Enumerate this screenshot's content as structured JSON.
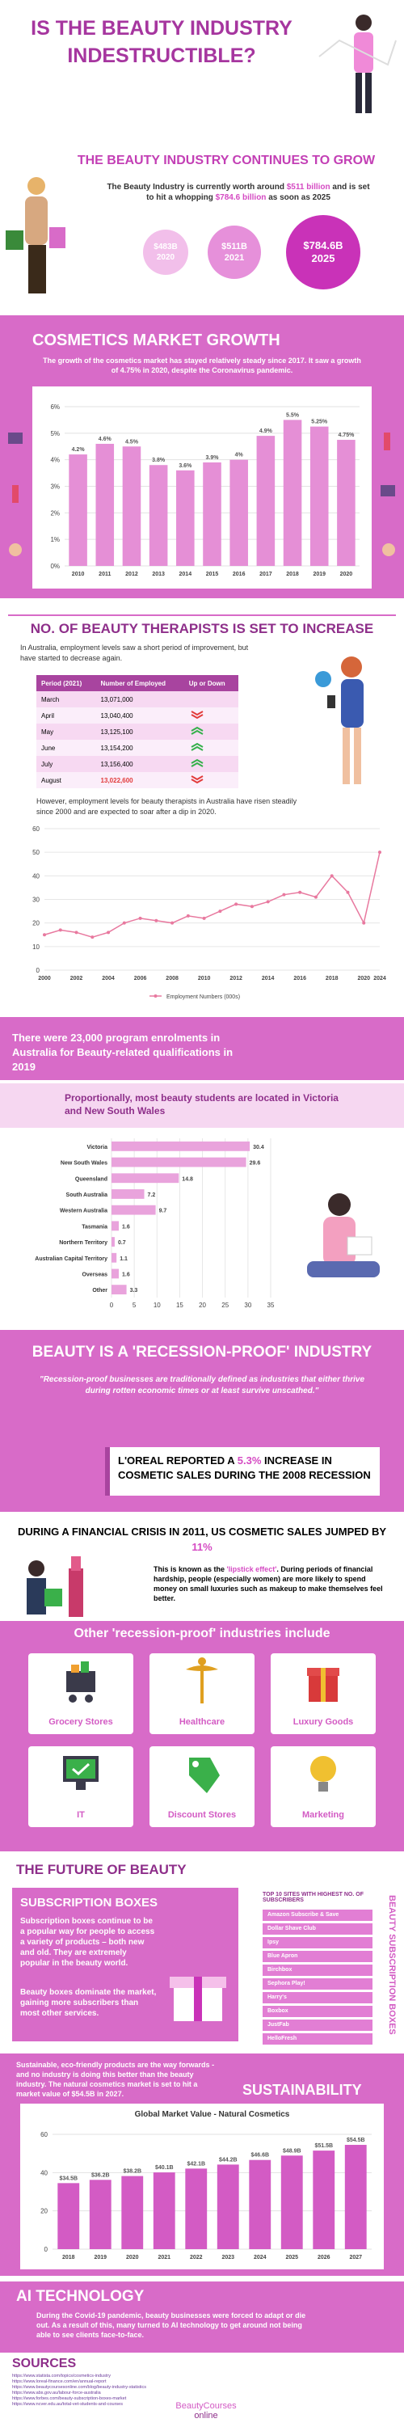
{
  "header": {
    "title": "IS THE BEAUTY INDUSTRY INDESTRUCTIBLE?"
  },
  "growth": {
    "title": "THE BEAUTY INDUSTRY CONTINUES TO GROW",
    "text": [
      "The Beauty Industry is currently worth around ",
      "$511 billion",
      " and is set to hit a whopping ",
      "$784.6 billion",
      " as soon as 2025"
    ],
    "circles": [
      {
        "amount": "$483B",
        "year": "2020"
      },
      {
        "amount": "$511B",
        "year": "2021"
      },
      {
        "amount": "$784.6B",
        "year": "2025"
      }
    ]
  },
  "cosmetics": {
    "title": "COSMETICS MARKET GROWTH",
    "text": "The growth of the cosmetics market has stayed relatively steady since 2017. It saw a growth of 4.75% in 2020, despite the Coronavirus pandemic."
  },
  "therapists": {
    "title": "NO. OF BEAUTY THERAPISTS IS SET TO INCREASE",
    "text": "In Australia, employment levels saw a short period of improvement, but have started to decrease again.",
    "table": {
      "columns": [
        "Period (2021)",
        "Number of Employed",
        "Up or Down"
      ],
      "rows": [
        [
          "March",
          "13,071,000"
        ],
        [
          "April",
          "13,040,400"
        ],
        [
          "May",
          "13,125,100"
        ],
        [
          "June",
          "13,154,200"
        ],
        [
          "July",
          "13,156,400"
        ],
        [
          "August",
          "13,022,600"
        ]
      ]
    },
    "text2": "However, employment levels for beauty therapists in Australia have risen steadily since 2000 and are expected to soar after a dip in 2020."
  },
  "enrolments": "There were 23,000 program enrolments in Australia for Beauty-related qualifications in 2019",
  "proportion": "Proportionally, most beauty students are located in Victoria and New South Wales",
  "recession": {
    "title": "BEAUTY IS A 'RECESSION-PROOF' INDUSTRY",
    "quote": "\"Recession-proof businesses are traditionally defined as industries that either thrive during rotten economic times or at least survive unscathed.\"",
    "loreal": [
      "L'OREAL REPORTED A ",
      "5.3%",
      " INCREASE IN COSMETIC SALES DURING THE 2008 RECESSION"
    ],
    "crisis": [
      "DURING A FINANCIAL CRISIS IN 2011, US COSMETIC SALES JUMPED BY ",
      "11%"
    ],
    "lipstick": [
      "This is known as the ",
      "'lipstick effect'",
      ". During periods of financial hardship, people (especially women) are more likely to spend money on small luxuries such as makeup to make themselves feel better."
    ]
  },
  "industries": {
    "title": "Other 'recession-proof' industries include",
    "items": [
      "Grocery Stores",
      "Healthcare",
      "Luxury Goods",
      "IT",
      "Discount Stores",
      "Marketing"
    ]
  },
  "future": {
    "title": "THE FUTURE OF BEAUTY",
    "subscription": {
      "title": "SUBSCRIPTION BOXES",
      "text1": "Subscription boxes continue to be a popular way for people to access a variety of products – both new and old. They are extremely popular in the beauty world.",
      "text2": "Beauty boxes dominate the market, gaining more subscribers than most other services."
    },
    "sites": {
      "title": "TOP 10 SITES WITH HIGHEST NO. OF SUBSCRIBERS",
      "side": "BEAUTY SUBSCRIPTION BOXES",
      "items": [
        "Amazon Subscribe & Save",
        "Dollar Shave Club",
        "Ipsy",
        "Blue Apron",
        "Birchbox",
        "Sephora Play!",
        "Harry's",
        "Boxbox",
        "JustFab",
        "HelloFresh"
      ]
    }
  },
  "sustainability": {
    "title": "SUSTAINABILITY",
    "text": "Sustainable, eco-friendly products are the way forwards - and no industry is doing this better than the beauty industry. The natural cosmetics market is set to hit a market value of $54.5B in 2027."
  },
  "ai": {
    "title": "AI TECHNOLOGY",
    "text": "During the Covid-19 pandemic, beauty businesses were forced to adapt or die out. As a result of this, many turned to AI technology to get around not being able to see clients face-to-face."
  },
  "sources": {
    "title": "SOURCES",
    "items": [
      "https://www.statista.com/topics/cosmetics-industry",
      "https://www.loreal-finance.com/en/annual-report",
      "https://www.beautycoursesonline.com/blog/beauty-industry-statistics",
      "https://www.abs.gov.au/labour-force-australia",
      "https://www.forbes.com/beauty-subscription-boxes-market",
      "https://www.ncver.edu.au/total-vet-students-and-courses"
    ]
  },
  "logo": [
    "Beauty",
    "Courses",
    "online"
  ],
  "chart_data": [
    {
      "type": "bar",
      "categories": [
        "2010",
        "2011",
        "2012",
        "2013",
        "2014",
        "2015",
        "2016",
        "2017",
        "2018",
        "2019",
        "2020"
      ],
      "values": [
        4.2,
        4.6,
        4.5,
        3.8,
        3.6,
        3.9,
        4,
        4.9,
        5.5,
        5.25,
        4.75
      ],
      "value_labels": [
        "4.2%",
        "4.6%",
        "4.5%",
        "3.8%",
        "3.6%",
        "3.9%",
        "4%",
        "4.9%",
        "5.5%",
        "5.25%",
        "4.75%"
      ],
      "color": "#e58fd6",
      "ylim": [
        0,
        6
      ],
      "yticks": [
        {
          "value": 0,
          "label": "0%"
        },
        {
          "value": 1,
          "label": "1%"
        },
        {
          "value": 2,
          "label": "2%"
        },
        {
          "value": 3,
          "label": "3%"
        },
        {
          "value": 4,
          "label": "4%"
        },
        {
          "value": 5,
          "label": "5%"
        },
        {
          "value": 6,
          "label": "6%"
        }
      ],
      "grid": true
    },
    {
      "type": "line",
      "categories": [
        "2000",
        null,
        "2002",
        null,
        "2004",
        null,
        "2006",
        null,
        "2008",
        null,
        "2010",
        null,
        "2012",
        null,
        "2014",
        null,
        "2016",
        null,
        "2018",
        null,
        "2020",
        "2024"
      ],
      "series": [
        {
          "name": "Employment Numbers (000s)",
          "color": "#e8799f",
          "values": [
            15,
            17,
            16,
            14,
            16,
            20,
            22,
            21,
            20,
            23,
            22,
            25,
            28,
            27,
            29,
            32,
            33,
            31,
            40,
            33,
            20,
            50
          ]
        }
      ],
      "ylim": [
        0,
        60
      ],
      "yticks": [
        0,
        10,
        20,
        30,
        40,
        50,
        60
      ],
      "grid": true
    },
    {
      "type": "barh",
      "categories": [
        "Victoria",
        "New South Wales",
        "Queensland",
        "South Australia",
        "Western Australia",
        "Tasmania",
        "Northern Territory",
        "Australian Capital Territory",
        "Overseas",
        "Other"
      ],
      "values": [
        30.4,
        29.6,
        14.8,
        7.2,
        9.7,
        1.6,
        0.7,
        1.1,
        1.6,
        3.3
      ],
      "color": "#e9a3dc",
      "xlim": [
        0,
        35
      ],
      "xticks": [
        0,
        5,
        10,
        15,
        20,
        25,
        30,
        35
      ],
      "grid": true
    },
    {
      "type": "bar",
      "title": "Global Market Value - Natural Cosmetics",
      "categories": [
        "2018",
        "2019",
        "2020",
        "2021",
        "2022",
        "2023",
        "2024",
        "2025",
        "2026",
        "2027"
      ],
      "values": [
        34.5,
        36.2,
        38.2,
        40.1,
        42.1,
        44.2,
        46.6,
        48.9,
        51.5,
        54.5
      ],
      "value_labels": [
        "$34.5B",
        "$36.2B",
        "$38.2B",
        "$40.1B",
        "$42.1B",
        "$44.2B",
        "$46.6B",
        "$48.9B",
        "$51.5B",
        "$54.5B"
      ],
      "color": "#d35bc4",
      "ylim": [
        0,
        60
      ],
      "yticks": [
        0,
        20,
        40,
        60
      ],
      "grid": true
    }
  ]
}
